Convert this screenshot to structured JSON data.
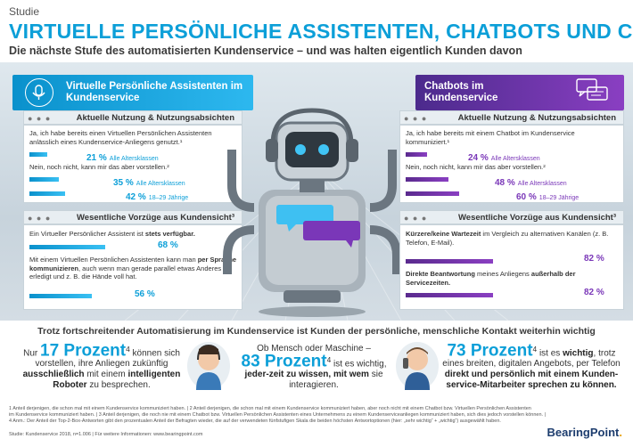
{
  "header": {
    "kicker": "Studie",
    "title": "VIRTUELLE PERSÖNLICHE ASSISTENTEN, CHATBOTS UND CO.",
    "subtitle": "Die nächste Stufe des automatisierten Kundenservice – und was halten eigentlich Kunden davon"
  },
  "left": {
    "banner": "Virtuelle Persönliche Assistenten im Kundenservice",
    "usage_label": "Aktuelle Nutzung & Nutzungsabsichten",
    "q1": "Ja, ich habe bereits einen Virtuellen Persönlichen Assistenten anlässlich eines Kundenservice-Anliegens genutzt.¹",
    "q1_pct": "21 %",
    "q1_note": "Alle Altersklassen",
    "q1_value": 21,
    "q2": "Nein, noch nicht, kann mir das aber vorstellen.²",
    "q2a_pct": "35 %",
    "q2a_note": "Alle Altersklassen",
    "q2a_value": 35,
    "q2b_pct": "42 %",
    "q2b_note": "18–29 Jährige",
    "q2b_value": 42,
    "benefit_label": "Wesentliche Vorzüge aus Kundensicht³",
    "b1_pre": "Ein Virtueller Persönlicher Assistent ist ",
    "b1_bold": "stets verfügbar.",
    "b1_pct": "68 %",
    "b1_value": 68,
    "b2_pre": "Mit einem Virtuellen Persönlichen Assistenten kann man ",
    "b2_bold": "per Sprache kommunizieren",
    "b2_post": ", auch wenn man gerade parallel etwas Anderes erledigt und z. B. die Hände voll hat.",
    "b2_pct": "56 %",
    "b2_value": 56
  },
  "right": {
    "banner": "Chatbots im Kundenservice",
    "usage_label": "Aktuelle Nutzung & Nutzungsabsichten",
    "q1": "Ja, ich habe bereits mit einem Chatbot im Kundenservice kommuniziert.¹",
    "q1_pct": "24 %",
    "q1_note": "Alle Altersklassen",
    "q1_value": 24,
    "q2": "Nein, noch nicht, kann mir das aber vorstellen.²",
    "q2a_pct": "48 %",
    "q2a_note": "Alle Altersklassen",
    "q2a_value": 48,
    "q2b_pct": "60 %",
    "q2b_note": "18–29 Jährige",
    "q2b_value": 60,
    "benefit_label": "Wesentliche Vorzüge aus Kundensicht³",
    "b1_bold": "Kürzere/keine Wartezeit",
    "b1_post": " im Vergleich zu alternativen Kanälen (z. B. Telefon, E-Mail).",
    "b1_pct": "82 %",
    "b1_value": 82,
    "b2_bold": "Direkte Beantwortung",
    "b2_post": " meines Anliegens ",
    "b2_bold2": "außerhalb der Servicezeiten.",
    "b2_pct": "82 %",
    "b2_value": 82
  },
  "bottom": {
    "headline": "Trotz fortschreitender Automatisierung im Kundenservice ist Kunden der persönliche, menschliche Kontakt weiterhin wichtig",
    "f1_pre": "Nur ",
    "f1_big": "17 Prozent",
    "f1_sup": "4",
    "f1_post": " können sich vorstellen, ihre Anliegen zukünftig ",
    "f1_bold": "ausschließlich",
    "f1_post2": " mit einem ",
    "f1_bold2": "intelligenten Roboter",
    "f1_post3": " zu besprechen.",
    "f2_pre": "Ob Mensch oder Maschine –",
    "f2_big": "83 Prozent",
    "f2_sup": "4",
    "f2_post": " ist es wichtig, ",
    "f2_bold": "jeder-zeit zu wissen, mit wem",
    "f2_post2": " sie interagieren.",
    "f3_big": "73 Prozent",
    "f3_sup": "4",
    "f3_post": " ist es ",
    "f3_bold": "wichtig",
    "f3_post2": ", trotz eines breiten, digitalen Angebots, per Telefon ",
    "f3_bold2": "direkt und persönlich mit einem Kunden-service-Mitarbeiter sprechen zu können."
  },
  "footnotes": [
    "1 Anteil derjenigen, die schon mal mit einem Kundenservice kommuniziert haben. | 2 Anteil derjenigen, die schon mal mit einem Kundenservice kommuniziert haben, aber noch nicht mit einem Chatbot bzw. Virtuellen Persönlichen Assistenten",
    "im Kundenservice kommuniziert haben. | 3 Anteil derjenigen, die noch nie mit einem Chatbot bzw. Virtuellen Persönlichen Assistenten eines Unternehmens zu einem Kundenserviceanliegen kommuniziert haben, sich dies jedoch vorstellen können. |",
    "4 Anm.: Der Anteil der Top-2-Box-Antworten gibt den prozentualen Anteil der Befragten wieder, die auf der verwendeten fünfstufigen Skala die beiden höchsten Antwortoptionen (hier: „sehr wichtig“ + „wichtig“) ausgewählt haben."
  ],
  "source": "Studie: Kundenservice 2018, n=1.006 | Für weitere Informationen: www.bearingpoint.com",
  "logo": {
    "text": "BearingPoint",
    "dot": "."
  },
  "colors": {
    "blue": "#0c9fd8",
    "purple": "#7a37b8",
    "navy": "#1d3d6e"
  }
}
